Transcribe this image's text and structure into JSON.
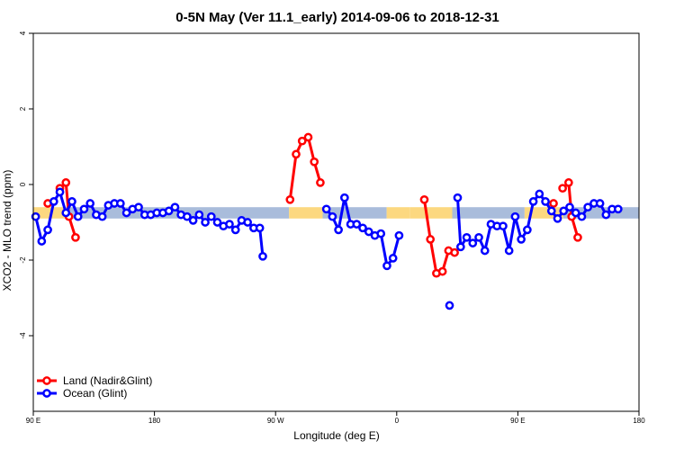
{
  "chart_data": {
    "type": "line",
    "title": "0-5N May (Ver 11.1_early)   2014-09-06 to 2018-12-31",
    "xlabel": "Longitude (deg E)",
    "ylabel": "XCO2 - MLO trend (ppm)",
    "xlim": [
      90,
      450
    ],
    "ylim": [
      -6,
      4
    ],
    "x_ticks": [
      {
        "value": 90,
        "label": "90 E"
      },
      {
        "value": 162,
        "label": "180"
      },
      {
        "value": 234,
        "label": "90 W"
      },
      {
        "value": 306,
        "label": "0"
      },
      {
        "value": 378,
        "label": "90 E"
      },
      {
        "value": 450,
        "label": "180"
      }
    ],
    "y_ticks": [
      {
        "value": -4,
        "label": "-4"
      },
      {
        "value": -2,
        "label": "-2"
      },
      {
        "value": 0,
        "label": "0"
      },
      {
        "value": 2,
        "label": "2"
      },
      {
        "value": 4,
        "label": "4"
      }
    ],
    "grid": false,
    "legend_position": "bottom-left",
    "background_band": {
      "y_range": [
        -0.9,
        -0.6
      ],
      "segments": [
        {
          "x_range": [
            90,
            109
          ],
          "type": "land"
        },
        {
          "x_range": [
            109,
            242
          ],
          "type": "ocean"
        },
        {
          "x_range": [
            242,
            262
          ],
          "type": "land"
        },
        {
          "x_range": [
            262,
            300
          ],
          "type": "ocean"
        },
        {
          "x_range": [
            300,
            314
          ],
          "type": "land"
        },
        {
          "x_range": [
            314,
            339
          ],
          "type": "land"
        },
        {
          "x_range": [
            339,
            382
          ],
          "type": "ocean"
        },
        {
          "x_range": [
            382,
            405
          ],
          "type": "land"
        },
        {
          "x_range": [
            405,
            450
          ],
          "type": "ocean"
        }
      ],
      "colors": {
        "land": "#FCD880",
        "ocean": "#A9BCDB"
      }
    },
    "series": [
      {
        "name": "Land (Nadir&Glint)",
        "color": "#FF0000",
        "segments": [
          [
            [
              98.6,
              -0.5
            ]
          ],
          [
            [
              105.8,
              -0.1
            ],
            [
              109.4,
              0.05
            ],
            [
              111.2,
              -0.85
            ],
            [
              115.1,
              -1.4
            ]
          ],
          [
            [
              242.6,
              -0.4
            ],
            [
              246.2,
              0.8
            ],
            [
              249.8,
              1.15
            ],
            [
              253.4,
              1.25
            ],
            [
              257.0,
              0.6
            ],
            [
              260.6,
              0.05
            ]
          ],
          [
            [
              322.4,
              -0.4
            ],
            [
              326.0,
              -1.45
            ],
            [
              329.6,
              -2.35
            ],
            [
              333.2,
              -2.3
            ],
            [
              336.8,
              -1.75
            ],
            [
              340.4,
              -1.8
            ]
          ],
          [
            [
              399.2,
              -0.5
            ]
          ],
          [
            [
              404.6,
              -0.1
            ],
            [
              408.2,
              0.05
            ],
            [
              410.0,
              -0.85
            ],
            [
              413.6,
              -1.4
            ]
          ]
        ]
      },
      {
        "name": "Ocean (Glint)",
        "color": "#0000FF",
        "segments": [
          [
            [
              91.4,
              -0.85
            ],
            [
              95.0,
              -1.5
            ],
            [
              98.6,
              -1.2
            ],
            [
              102.2,
              -0.45
            ],
            [
              105.8,
              -0.2
            ],
            [
              109.4,
              -0.75
            ],
            [
              113.0,
              -0.45
            ],
            [
              116.6,
              -0.85
            ],
            [
              120.2,
              -0.65
            ],
            [
              123.8,
              -0.5
            ],
            [
              127.4,
              -0.8
            ],
            [
              131.0,
              -0.85
            ],
            [
              134.6,
              -0.55
            ],
            [
              138.2,
              -0.5
            ],
            [
              141.8,
              -0.5
            ],
            [
              145.4,
              -0.75
            ],
            [
              149.0,
              -0.65
            ],
            [
              152.6,
              -0.6
            ],
            [
              156.2,
              -0.8
            ],
            [
              159.8,
              -0.8
            ],
            [
              163.4,
              -0.75
            ],
            [
              167.0,
              -0.75
            ],
            [
              170.6,
              -0.7
            ],
            [
              174.2,
              -0.6
            ],
            [
              177.8,
              -0.8
            ],
            [
              181.4,
              -0.85
            ],
            [
              185.0,
              -0.95
            ],
            [
              188.6,
              -0.8
            ],
            [
              192.2,
              -1.0
            ],
            [
              195.8,
              -0.85
            ],
            [
              199.4,
              -1.0
            ],
            [
              203.0,
              -1.1
            ],
            [
              206.6,
              -1.05
            ],
            [
              210.2,
              -1.2
            ],
            [
              213.8,
              -0.95
            ],
            [
              217.4,
              -1.0
            ],
            [
              221.0,
              -1.15
            ],
            [
              224.6,
              -1.15
            ],
            [
              226.4,
              -1.9
            ]
          ],
          [
            [
              264.2,
              -0.65
            ],
            [
              267.8,
              -0.85
            ],
            [
              271.4,
              -1.2
            ],
            [
              275.0,
              -0.35
            ],
            [
              278.6,
              -1.05
            ],
            [
              282.2,
              -1.05
            ],
            [
              285.8,
              -1.15
            ],
            [
              289.4,
              -1.25
            ],
            [
              293.0,
              -1.35
            ],
            [
              296.6,
              -1.3
            ],
            [
              300.2,
              -2.15
            ],
            [
              303.8,
              -1.95
            ],
            [
              307.4,
              -1.35
            ]
          ],
          [
            [
              337.4,
              -3.2
            ]
          ],
          [
            [
              342.2,
              -0.35
            ],
            [
              344.0,
              -1.65
            ],
            [
              347.6,
              -1.4
            ],
            [
              351.2,
              -1.55
            ],
            [
              354.8,
              -1.4
            ],
            [
              358.4,
              -1.75
            ],
            [
              362.0,
              -1.05
            ],
            [
              365.6,
              -1.1
            ],
            [
              369.2,
              -1.1
            ],
            [
              372.8,
              -1.75
            ],
            [
              376.4,
              -0.85
            ],
            [
              380.0,
              -1.45
            ],
            [
              383.6,
              -1.2
            ],
            [
              387.2,
              -0.45
            ],
            [
              390.8,
              -0.25
            ],
            [
              394.4,
              -0.45
            ],
            [
              398.0,
              -0.7
            ],
            [
              401.6,
              -0.9
            ],
            [
              405.2,
              -0.7
            ],
            [
              408.8,
              -0.6
            ],
            [
              412.4,
              -0.75
            ],
            [
              416.0,
              -0.85
            ],
            [
              419.6,
              -0.6
            ],
            [
              423.2,
              -0.5
            ],
            [
              426.8,
              -0.5
            ],
            [
              430.4,
              -0.8
            ],
            [
              434.0,
              -0.65
            ],
            [
              437.6,
              -0.65
            ]
          ]
        ]
      }
    ]
  }
}
